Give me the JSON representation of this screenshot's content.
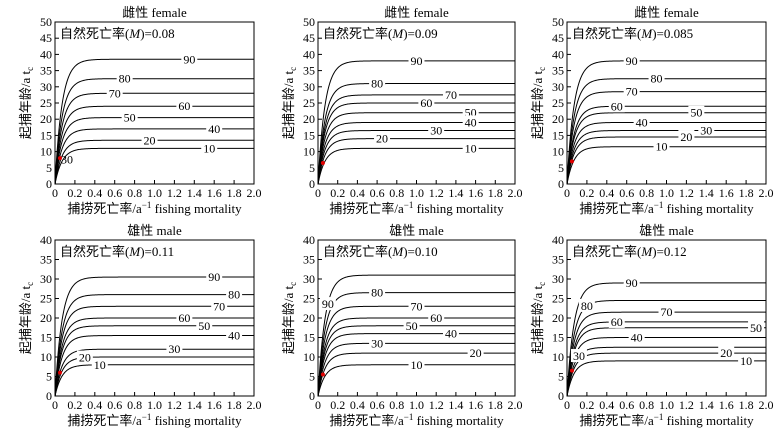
{
  "shared": {
    "ylabel": "起捕年龄/a t",
    "ylabel_sub": "c",
    "xlabel": "捕捞死亡率/a",
    "xlabel_sup": "−1",
    "xlabel_tail": " fishing mortality"
  },
  "chart_data": [
    {
      "type": "line",
      "title": "雌性 female",
      "annotation_pre": "自然死亡率(",
      "annotation_m": "M",
      "annotation_post": ")=0.08",
      "xlim": [
        0,
        2.0
      ],
      "ylim": [
        0,
        50
      ],
      "xticks": [
        "0",
        "0.2",
        "0.4",
        "0.6",
        "0.8",
        "1.0",
        "1.2",
        "1.4",
        "1.6",
        "1.8",
        "2.0"
      ],
      "yticks": [
        "0",
        "5",
        "10",
        "15",
        "20",
        "25",
        "30",
        "35",
        "40",
        "45",
        "50"
      ],
      "series": [
        {
          "label": "90",
          "asymptote": 38.5,
          "label_x": 1.35
        },
        {
          "label": "80",
          "asymptote": 32.5,
          "label_x": 0.7
        },
        {
          "label": "70",
          "asymptote": 28.0,
          "label_x": 0.6
        },
        {
          "label": "60",
          "asymptote": 24.0,
          "label_x": 1.3
        },
        {
          "label": "50",
          "asymptote": 20.5,
          "label_x": 0.75
        },
        {
          "label": "40",
          "asymptote": 17.0,
          "label_x": 1.6
        },
        {
          "label": "20",
          "asymptote": 13.5,
          "label_x": 0.95
        },
        {
          "label": "10",
          "asymptote": 11.0,
          "label_x": 1.55
        }
      ],
      "point_labels": [
        {
          "text": "30",
          "x": 0.12,
          "y": 7.5
        }
      ],
      "markers": [
        {
          "x": 0.05,
          "y": 8.0
        }
      ]
    },
    {
      "type": "line",
      "title": "雌性 female",
      "annotation_pre": "自然死亡率(",
      "annotation_m": "M",
      "annotation_post": ")=0.09",
      "xlim": [
        0,
        2.0
      ],
      "ylim": [
        0,
        50
      ],
      "xticks": [
        "0",
        "0.2",
        "0.4",
        "0.6",
        "0.8",
        "1.0",
        "1.2",
        "1.4",
        "1.6",
        "1.8",
        "2.0"
      ],
      "yticks": [
        "0",
        "5",
        "10",
        "15",
        "20",
        "25",
        "30",
        "35",
        "40",
        "45",
        "50"
      ],
      "series": [
        {
          "label": "90",
          "asymptote": 38.0,
          "label_x": 1.0
        },
        {
          "label": "80",
          "asymptote": 31.0,
          "label_x": 0.6
        },
        {
          "label": "70",
          "asymptote": 27.5,
          "label_x": 1.35
        },
        {
          "label": "60",
          "asymptote": 25.0,
          "label_x": 1.1
        },
        {
          "label": "50",
          "asymptote": 22.0,
          "label_x": 1.55
        },
        {
          "label": "40",
          "asymptote": 19.0,
          "label_x": 1.55
        },
        {
          "label": "30",
          "asymptote": 16.5,
          "label_x": 1.2
        },
        {
          "label": "20",
          "asymptote": 14.0,
          "label_x": 0.65
        },
        {
          "label": "10",
          "asymptote": 11.0,
          "label_x": 1.55
        }
      ],
      "point_labels": [],
      "markers": [
        {
          "x": 0.05,
          "y": 6.5
        }
      ]
    },
    {
      "type": "line",
      "title": "雌性 female",
      "annotation_pre": "自然死亡率(",
      "annotation_m": "M",
      "annotation_post": ")=0.085",
      "xlim": [
        0,
        2.0
      ],
      "ylim": [
        0,
        50
      ],
      "xticks": [
        "0",
        "0.2",
        "0.4",
        "0.6",
        "0.8",
        "1.0",
        "1.2",
        "1.4",
        "1.6",
        "1.8",
        "2.0"
      ],
      "yticks": [
        "0",
        "5",
        "10",
        "15",
        "20",
        "25",
        "30",
        "35",
        "40",
        "45",
        "50"
      ],
      "series": [
        {
          "label": "90",
          "asymptote": 38.0,
          "label_x": 0.65
        },
        {
          "label": "80",
          "asymptote": 32.5,
          "label_x": 0.9
        },
        {
          "label": "70",
          "asymptote": 28.5,
          "label_x": 0.65
        },
        {
          "label": "60",
          "asymptote": 24.0,
          "label_x": 0.5
        },
        {
          "label": "50",
          "asymptote": 22.0,
          "label_x": 1.3
        },
        {
          "label": "40",
          "asymptote": 19.0,
          "label_x": 0.75
        },
        {
          "label": "30",
          "asymptote": 16.5,
          "label_x": 1.4
        },
        {
          "label": "20",
          "asymptote": 14.5,
          "label_x": 1.2
        },
        {
          "label": "10",
          "asymptote": 11.5,
          "label_x": 0.95
        }
      ],
      "point_labels": [],
      "markers": [
        {
          "x": 0.05,
          "y": 7.0
        }
      ]
    },
    {
      "type": "line",
      "title": "雄性 male",
      "annotation_pre": "自然死亡率(",
      "annotation_m": "M",
      "annotation_post": ")=0.11",
      "xlim": [
        0,
        2.0
      ],
      "ylim": [
        0,
        40
      ],
      "xticks": [
        "0",
        "0.2",
        "0.4",
        "0.6",
        "0.8",
        "1.0",
        "1.2",
        "1.4",
        "1.6",
        "1.8",
        "2.0"
      ],
      "yticks": [
        "0",
        "5",
        "10",
        "15",
        "20",
        "25",
        "30",
        "35",
        "40"
      ],
      "series": [
        {
          "label": "90",
          "asymptote": 30.5,
          "label_x": 1.6
        },
        {
          "label": "80",
          "asymptote": 26.0,
          "label_x": 1.8
        },
        {
          "label": "70",
          "asymptote": 23.0,
          "label_x": 1.65
        },
        {
          "label": "60",
          "asymptote": 20.0,
          "label_x": 1.3
        },
        {
          "label": "50",
          "asymptote": 18.0,
          "label_x": 1.5
        },
        {
          "label": "40",
          "asymptote": 15.5,
          "label_x": 1.8
        },
        {
          "label": "30",
          "asymptote": 12.0,
          "label_x": 1.2
        },
        {
          "label": "20",
          "asymptote": 10.0,
          "label_x": 0.3
        },
        {
          "label": "10",
          "asymptote": 8.0,
          "label_x": 0.45
        }
      ],
      "point_labels": [],
      "markers": [
        {
          "x": 0.05,
          "y": 6.0
        }
      ]
    },
    {
      "type": "line",
      "title": "雄性 male",
      "annotation_pre": "自然死亡率(",
      "annotation_m": "M",
      "annotation_post": ")=0.10",
      "xlim": [
        0,
        2.0
      ],
      "ylim": [
        0,
        40
      ],
      "xticks": [
        "0",
        "0.2",
        "0.4",
        "0.6",
        "0.8",
        "1.0",
        "1.2",
        "1.4",
        "1.6",
        "1.8",
        "2.0"
      ],
      "yticks": [
        "0",
        "5",
        "10",
        "15",
        "20",
        "25",
        "30",
        "35",
        "40"
      ],
      "series": [
        {
          "label": "90",
          "asymptote": 31.0,
          "label_x": 0.1
        },
        {
          "label": "80",
          "asymptote": 26.5,
          "label_x": 0.6
        },
        {
          "label": "70",
          "asymptote": 23.0,
          "label_x": 1.0
        },
        {
          "label": "60",
          "asymptote": 20.0,
          "label_x": 1.2
        },
        {
          "label": "50",
          "asymptote": 18.0,
          "label_x": 0.95
        },
        {
          "label": "40",
          "asymptote": 16.0,
          "label_x": 1.35
        },
        {
          "label": "30",
          "asymptote": 13.5,
          "label_x": 0.6
        },
        {
          "label": "20",
          "asymptote": 11.0,
          "label_x": 1.6
        },
        {
          "label": "10",
          "asymptote": 8.0,
          "label_x": 1.0
        }
      ],
      "point_labels": [],
      "markers": [
        {
          "x": 0.05,
          "y": 5.5
        }
      ]
    },
    {
      "type": "line",
      "title": "雄性 male",
      "annotation_pre": "自然死亡率(",
      "annotation_m": "M",
      "annotation_post": ")=0.12",
      "xlim": [
        0,
        2.0
      ],
      "ylim": [
        0,
        40
      ],
      "xticks": [
        "0",
        "0.2",
        "0.4",
        "0.6",
        "0.8",
        "1.0",
        "1.2",
        "1.4",
        "1.6",
        "1.8",
        "2.0"
      ],
      "yticks": [
        "0",
        "5",
        "10",
        "15",
        "20",
        "25",
        "30",
        "35",
        "40"
      ],
      "series": [
        {
          "label": "90",
          "asymptote": 29.0,
          "label_x": 0.65
        },
        {
          "label": "80",
          "asymptote": 24.5,
          "label_x": 0.2
        },
        {
          "label": "70",
          "asymptote": 21.5,
          "label_x": 1.0
        },
        {
          "label": "60",
          "asymptote": 19.0,
          "label_x": 0.5
        },
        {
          "label": "50",
          "asymptote": 17.5,
          "label_x": 1.9
        },
        {
          "label": "40",
          "asymptote": 15.0,
          "label_x": 0.7
        },
        {
          "label": "30",
          "asymptote": 12.5,
          "label_x": 0.12
        },
        {
          "label": "20",
          "asymptote": 11.0,
          "label_x": 1.6
        },
        {
          "label": "10",
          "asymptote": 9.0,
          "label_x": 1.8
        }
      ],
      "point_labels": [],
      "markers": [
        {
          "x": 0.05,
          "y": 6.5
        }
      ]
    }
  ]
}
